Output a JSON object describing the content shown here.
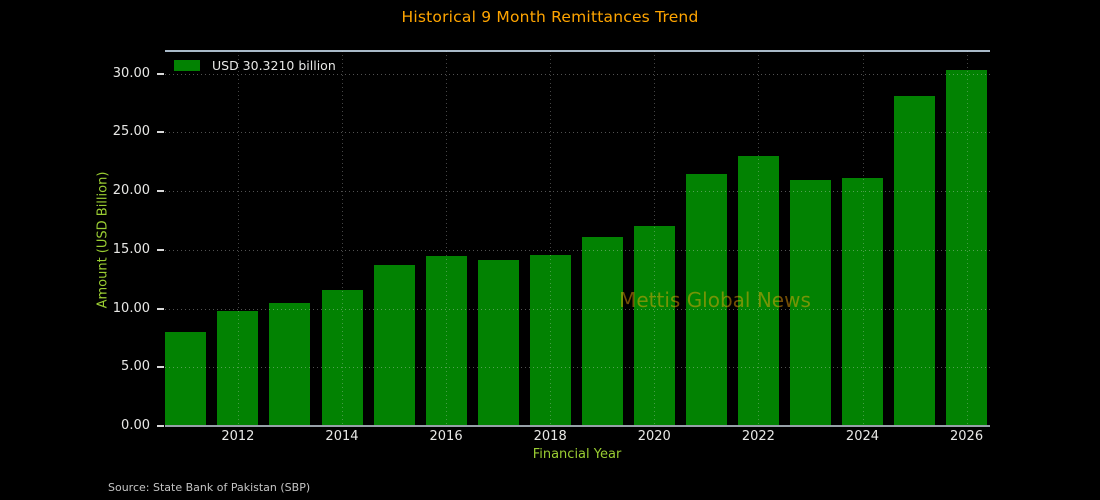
{
  "title": "Historical 9 Month Remittances Trend",
  "watermark": "Mettis Global News",
  "source_note": "Source: State Bank of Pakistan (SBP)",
  "legend": {
    "label": "USD 30.3210 billion"
  },
  "colors": {
    "background": "#000000",
    "bar": "#028202",
    "title": "#ffa500",
    "axis_label": "#9acd32",
    "tick_label": "#e8e8e6",
    "top_spine": "#a9bac9",
    "bottom_spine": "#97a1a8",
    "tick_dash": "#d8d8d8",
    "source_text": "#c4c4c4",
    "watermark": "rgba(255,172,10,0.45)"
  },
  "chart_data": {
    "type": "bar",
    "title": "Historical 9 Month Remittances Trend",
    "xlabel": "Financial Year",
    "ylabel": "Amount (USD Billion)",
    "x": [
      2011,
      2012,
      2013,
      2014,
      2015,
      2016,
      2017,
      2018,
      2019,
      2020,
      2021,
      2022,
      2023,
      2024,
      2025,
      2026
    ],
    "values": [
      8.05,
      9.78,
      10.5,
      11.55,
      13.7,
      14.45,
      14.15,
      14.6,
      16.1,
      17.0,
      21.45,
      23.0,
      20.95,
      21.1,
      28.1,
      30.32
    ],
    "series_name": "USD 30.3210 billion",
    "yticks": [
      0,
      5,
      10,
      15,
      20,
      25,
      30
    ],
    "ytick_labels": [
      "0.00",
      "5.00",
      "10.00",
      "15.00",
      "20.00",
      "25.00",
      "30.00"
    ],
    "xticks": [
      2012,
      2014,
      2016,
      2018,
      2020,
      2022,
      2024,
      2026
    ],
    "ylim": [
      0,
      31.93
    ],
    "xlim": [
      2010.6,
      2026.45
    ],
    "grid": "dotted",
    "legend_position": "upper left",
    "watermark": "Mettis Global News",
    "source": "Source: State Bank of Pakistan (SBP)"
  }
}
